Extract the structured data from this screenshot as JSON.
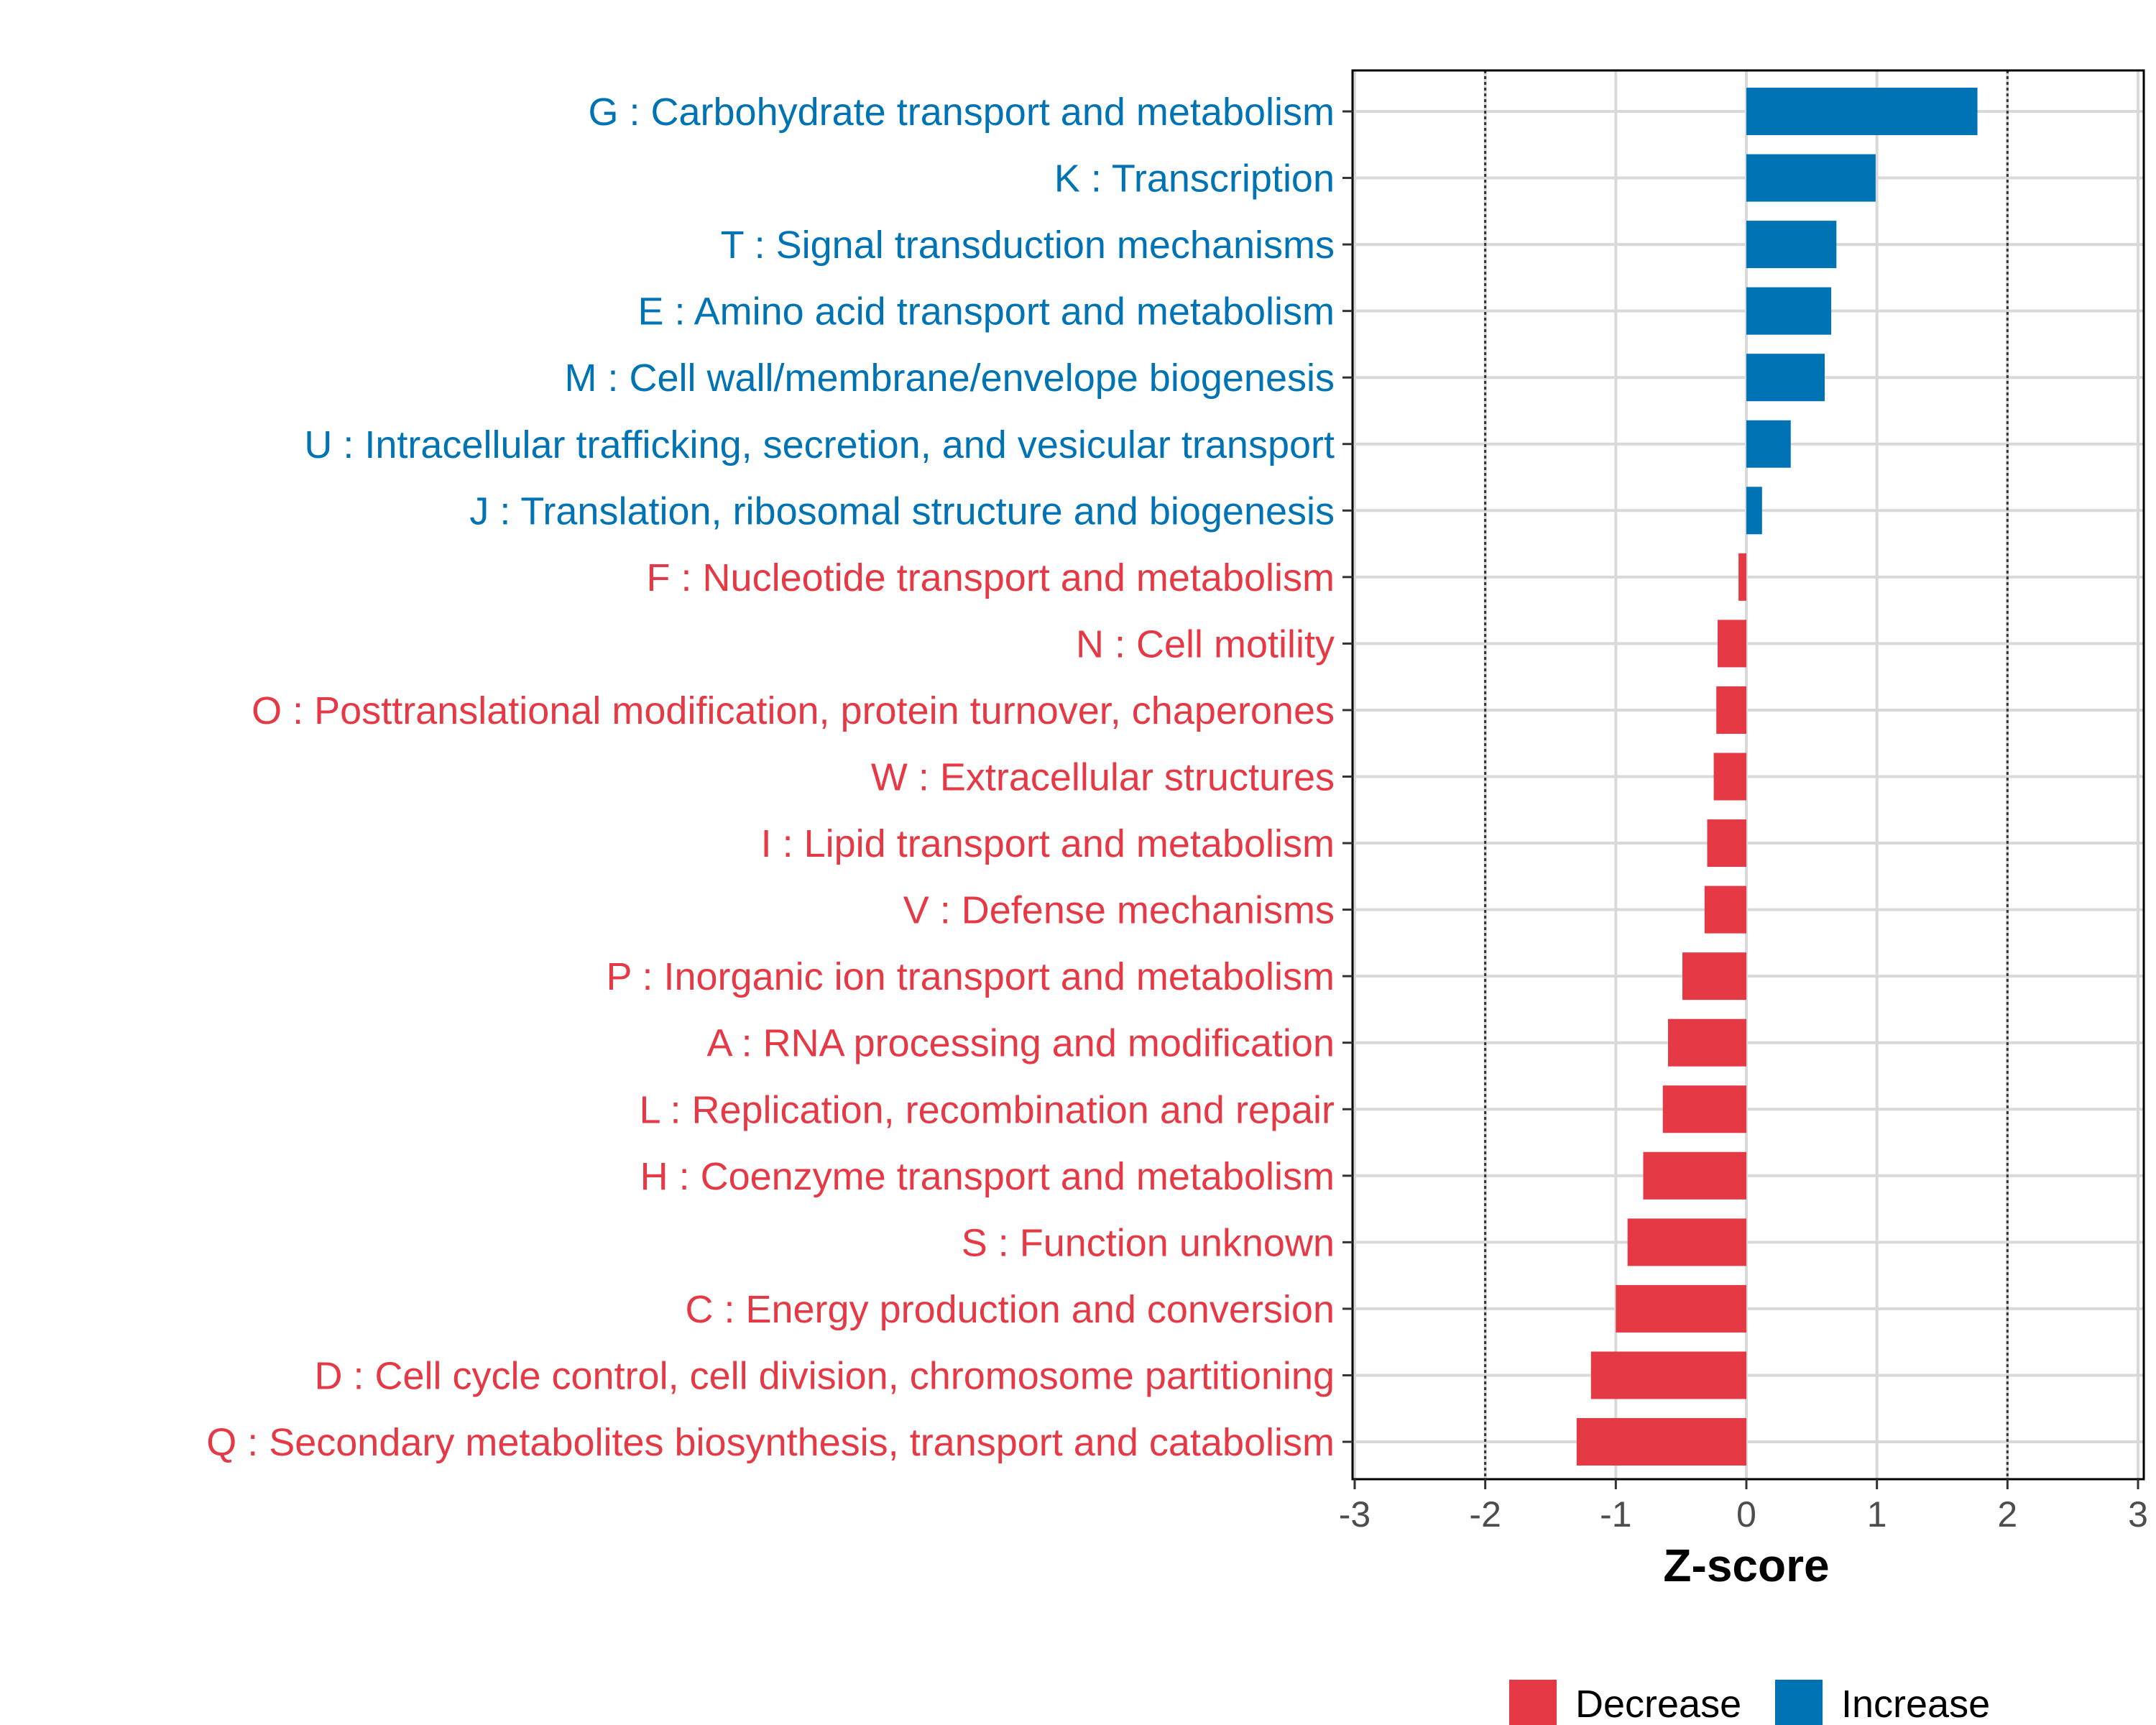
{
  "chart_data": {
    "type": "bar",
    "orientation": "horizontal",
    "xlabel": "Z-score",
    "xlim": [
      -3,
      3
    ],
    "xticks": [
      -3,
      -2,
      -1,
      0,
      1,
      2,
      3
    ],
    "reference_lines": [
      -2,
      2
    ],
    "grid": true,
    "legend_position": "bottom",
    "legend": [
      {
        "label": "Decrease",
        "color": "#E63946"
      },
      {
        "label": "Increase",
        "color": "#0073B4"
      }
    ],
    "categories": [
      "G : Carbohydrate transport and metabolism",
      "K : Transcription",
      "T : Signal transduction mechanisms",
      "E : Amino acid transport and metabolism",
      "M : Cell wall/membrane/envelope biogenesis",
      "U : Intracellular trafficking, secretion, and vesicular transport",
      "J : Translation, ribosomal structure and biogenesis",
      "F : Nucleotide transport and metabolism",
      "N : Cell motility",
      "O : Posttranslational modification, protein turnover, chaperones",
      "W : Extracellular structures",
      "I : Lipid transport and metabolism",
      "V : Defense mechanisms",
      "P : Inorganic ion transport and metabolism",
      "A : RNA processing and modification",
      "L : Replication, recombination and repair",
      "H : Coenzyme transport and metabolism",
      "S : Function unknown",
      "C : Energy production and conversion",
      "D : Cell cycle control, cell division, chromosome partitioning",
      "Q : Secondary metabolites biosynthesis, transport and catabolism"
    ],
    "values": [
      1.77,
      0.99,
      0.69,
      0.65,
      0.6,
      0.34,
      0.12,
      -0.06,
      -0.22,
      -0.23,
      -0.25,
      -0.3,
      -0.32,
      -0.49,
      -0.6,
      -0.64,
      -0.79,
      -0.91,
      -1.0,
      -1.19,
      -1.3
    ]
  }
}
